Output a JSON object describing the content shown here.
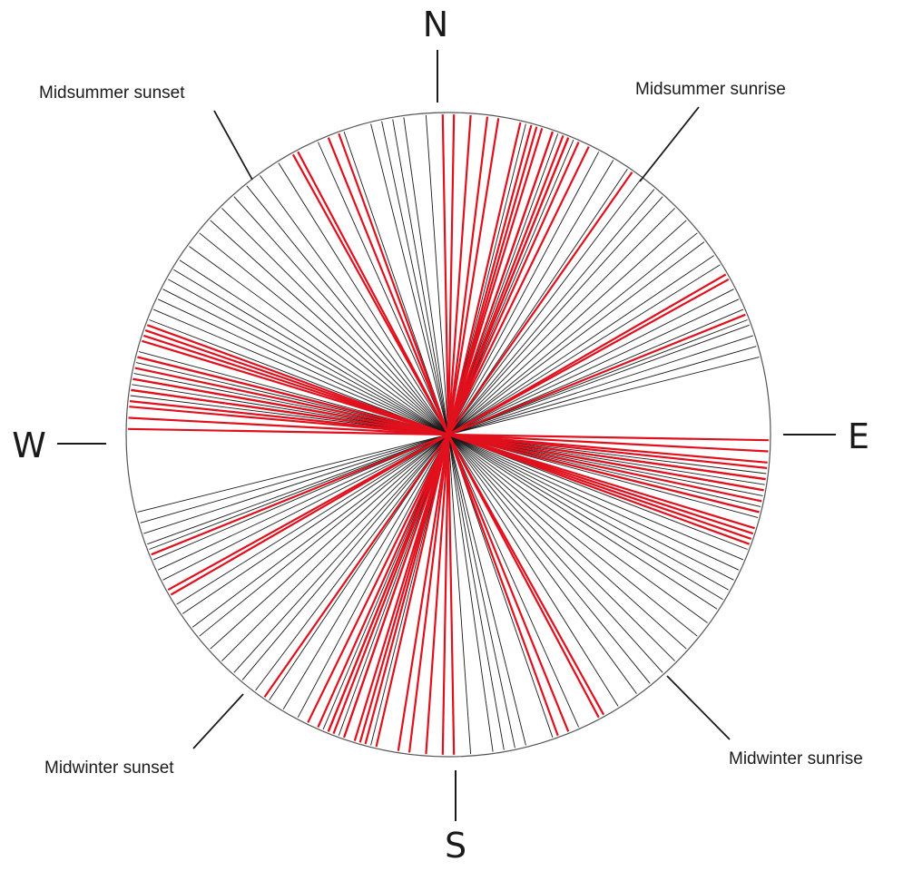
{
  "compass": {
    "north": "N",
    "south": "S",
    "east": "E",
    "west": "W"
  },
  "labels": {
    "midsummer_sunset": "Midsummer sunset",
    "midsummer_sunrise": "Midsummer sunrise",
    "midwinter_sunset": "Midwinter sunset",
    "midwinter_sunrise": "Midwinter sunrise"
  },
  "colors": {
    "highlight": "#e0101d",
    "normal": "#1a1a1a",
    "circle": "#555555"
  },
  "orientations_deg": {
    "normal": [
      14,
      17,
      20,
      23,
      26,
      28,
      31,
      34,
      37,
      40,
      42,
      45,
      48,
      51,
      53,
      56,
      58,
      61,
      63,
      65,
      67,
      69,
      70,
      72,
      74,
      76,
      97,
      99,
      101,
      103,
      105,
      107,
      109,
      111,
      113,
      115,
      117,
      119,
      121,
      123,
      126,
      129,
      132,
      135,
      138,
      141,
      144,
      148,
      152,
      156,
      161,
      166,
      168,
      170,
      172,
      176
    ],
    "highlighted": [
      1,
      4,
      9,
      15,
      17,
      19,
      21,
      22,
      24,
      35,
      68,
      91,
      93,
      96,
      98,
      100,
      104,
      108,
      110,
      151,
      152,
      179,
      187,
      193,
      196,
      199,
      202,
      206,
      240,
      241,
      275,
      278,
      280,
      282,
      284,
      287,
      289,
      338,
      340
    ]
  }
}
